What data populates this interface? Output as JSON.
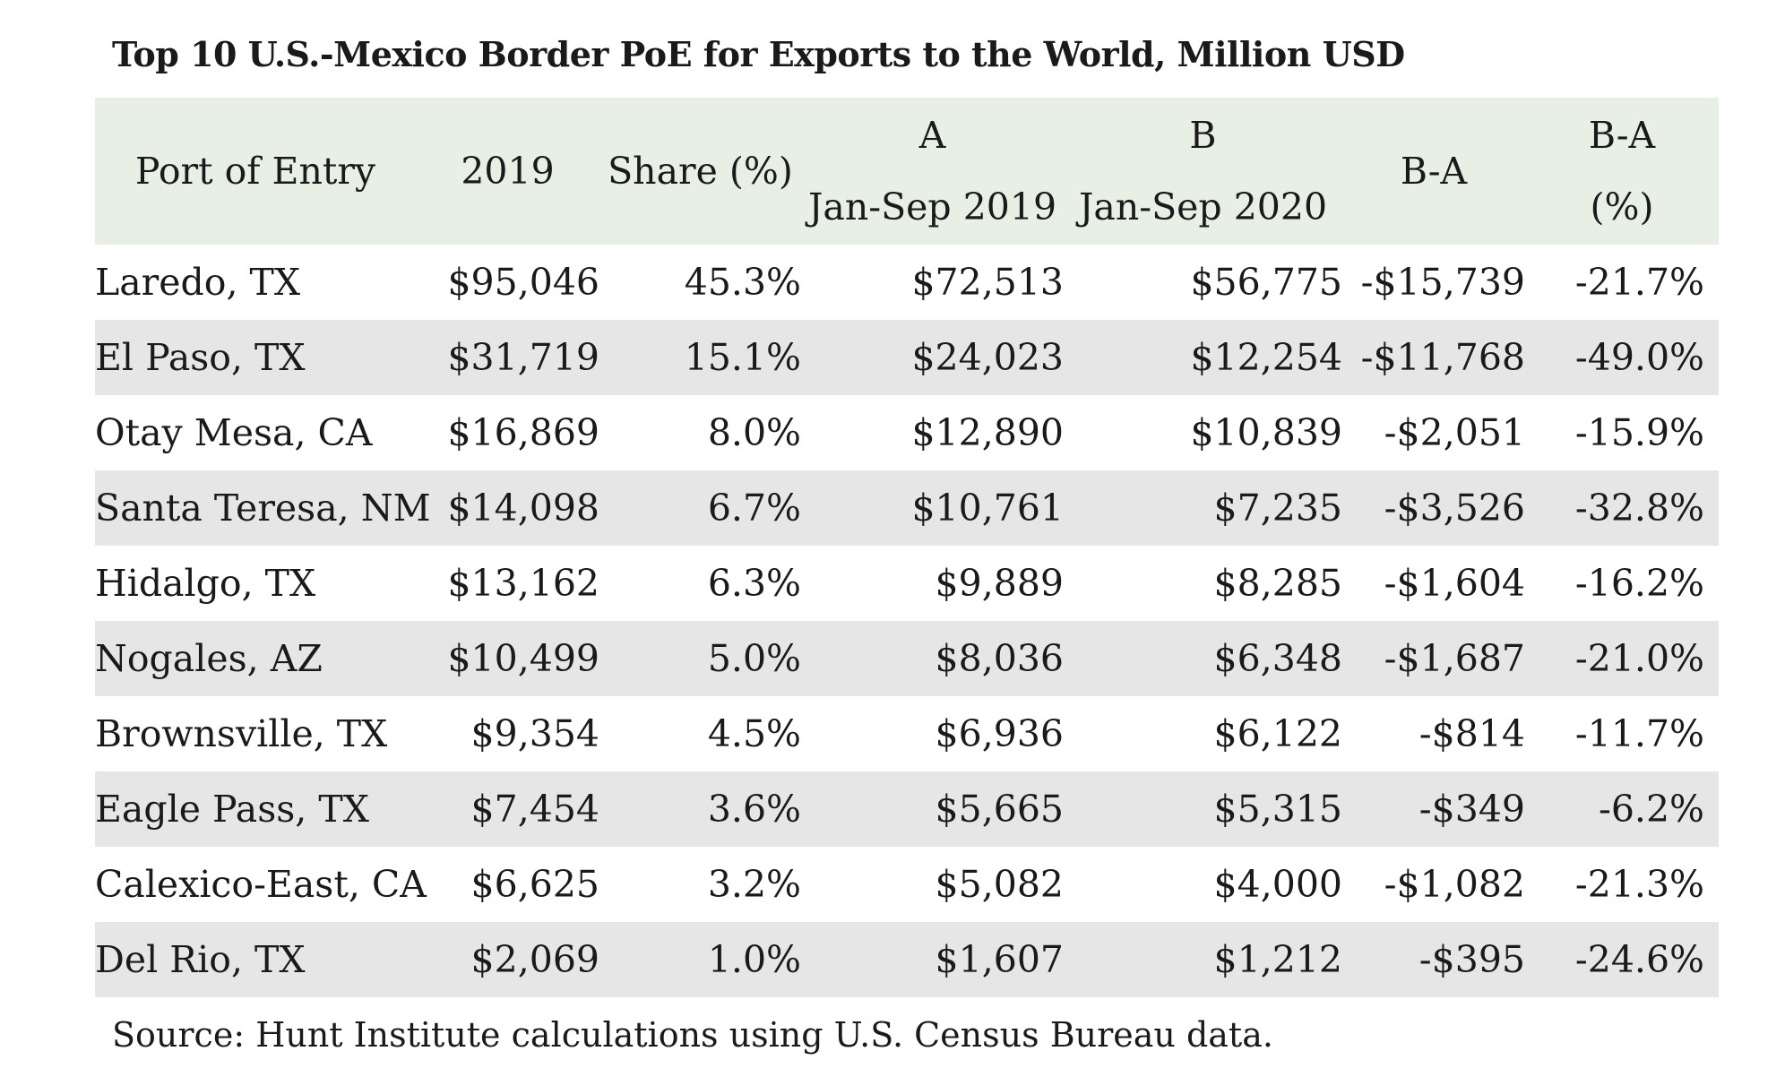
{
  "title": "Top 10 U.S.-Mexico Border PoE for Exports to the World, Million USD",
  "header": {
    "port": "Port of Entry",
    "y2019": "2019",
    "share": "Share (%)",
    "a_top": "A",
    "a_bottom": "Jan-Sep 2019",
    "b_top": "B",
    "b_bottom": "Jan-Sep 2020",
    "ba": "B-A",
    "bapct_top": "B-A",
    "bapct_bottom": "(%)"
  },
  "rows": [
    {
      "port": "Laredo, TX",
      "y2019": "$95,046",
      "share": "45.3%",
      "a": "$72,513",
      "b": "$56,775",
      "ba": "-$15,739",
      "bapct": "-21.7%"
    },
    {
      "port": "El Paso, TX",
      "y2019": "$31,719",
      "share": "15.1%",
      "a": "$24,023",
      "b": "$12,254",
      "ba": "-$11,768",
      "bapct": "-49.0%"
    },
    {
      "port": "Otay Mesa, CA",
      "y2019": "$16,869",
      "share": "8.0%",
      "a": "$12,890",
      "b": "$10,839",
      "ba": "-$2,051",
      "bapct": "-15.9%"
    },
    {
      "port": "Santa Teresa, NM",
      "y2019": "$14,098",
      "share": "6.7%",
      "a": "$10,761",
      "b": "$7,235",
      "ba": "-$3,526",
      "bapct": "-32.8%"
    },
    {
      "port": "Hidalgo, TX",
      "y2019": "$13,162",
      "share": "6.3%",
      "a": "$9,889",
      "b": "$8,285",
      "ba": "-$1,604",
      "bapct": "-16.2%"
    },
    {
      "port": "Nogales, AZ",
      "y2019": "$10,499",
      "share": "5.0%",
      "a": "$8,036",
      "b": "$6,348",
      "ba": "-$1,687",
      "bapct": "-21.0%"
    },
    {
      "port": "Brownsville, TX",
      "y2019": "$9,354",
      "share": "4.5%",
      "a": "$6,936",
      "b": "$6,122",
      "ba": "-$814",
      "bapct": "-11.7%"
    },
    {
      "port": "Eagle Pass, TX",
      "y2019": "$7,454",
      "share": "3.6%",
      "a": "$5,665",
      "b": "$5,315",
      "ba": "-$349",
      "bapct": "-6.2%"
    },
    {
      "port": "Calexico-East, CA",
      "y2019": "$6,625",
      "share": "3.2%",
      "a": "$5,082",
      "b": "$4,000",
      "ba": "-$1,082",
      "bapct": "-21.3%"
    },
    {
      "port": "Del Rio, TX",
      "y2019": "$2,069",
      "share": "1.0%",
      "a": "$1,607",
      "b": "$1,212",
      "ba": "-$395",
      "bapct": "-24.6%"
    }
  ],
  "source": "Source: Hunt Institute calculations using U.S. Census Bureau data.",
  "colors": {
    "header_bg": "#e8f0e6",
    "band_bg": "#e6e6e6",
    "text": "#1a1a1a"
  }
}
